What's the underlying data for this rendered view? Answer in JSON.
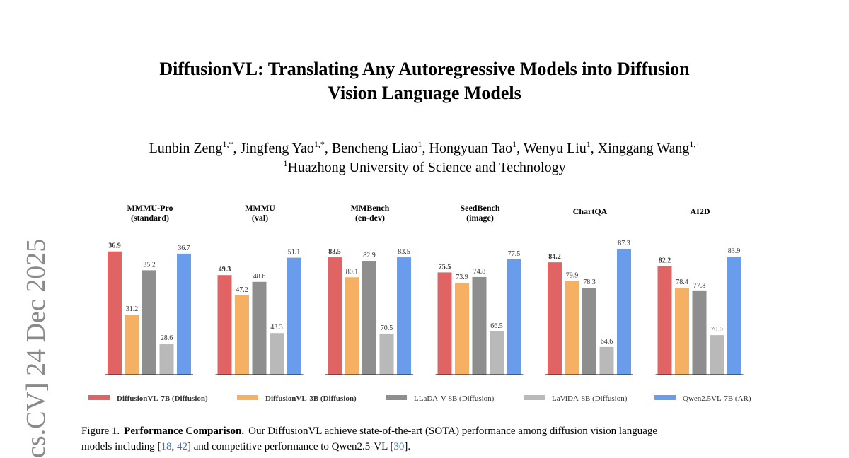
{
  "sidebar": "cs.CV]  24 Dec 2025",
  "title": [
    "DiffusionVL: Translating Any Autoregressive Models into Diffusion",
    "Vision Language Models"
  ],
  "authors": [
    {
      "name": "Lunbin Zeng",
      "sup": "1,*"
    },
    {
      "name": ", Jingfeng Yao",
      "sup": "1,*"
    },
    {
      "name": ", Bencheng Liao",
      "sup": "1"
    },
    {
      "name": ", Hongyuan Tao",
      "sup": "1"
    },
    {
      "name": ", Wenyu Liu",
      "sup": "1"
    },
    {
      "name": ", Xinggang Wang",
      "sup": "1,†"
    }
  ],
  "affiliation": {
    "sup": "1",
    "name": "Huazhong University of Science and Technology"
  },
  "legend": [
    {
      "name": "DiffusionVL-7B (Diffusion)",
      "color": "#e06464"
    },
    {
      "name": "DiffusionVL-3B (Diffusion)",
      "color": "#f5b064"
    },
    {
      "name": "LLaDA-V-8B (Diffusion)",
      "color": "#8e8e8e"
    },
    {
      "name": "LaViDA-8B (Diffusion)",
      "color": "#b9b9b9"
    },
    {
      "name": "Qwen2.5VL-7B (AR)",
      "color": "#6a9cec"
    }
  ],
  "chart_data": [
    {
      "type": "bar",
      "title": [
        "MMMU-Pro",
        "(standard)"
      ],
      "values": [
        36.9,
        31.2,
        35.2,
        28.6,
        36.7
      ],
      "ylim": [
        25.8,
        37.9
      ]
    },
    {
      "type": "bar",
      "title": [
        "MMMU",
        "(val)"
      ],
      "values": [
        49.3,
        47.2,
        48.6,
        43.3,
        51.1
      ],
      "ylim": [
        39.0,
        52.9
      ]
    },
    {
      "type": "bar",
      "title": [
        "MMBench",
        "(en-dev)"
      ],
      "values": [
        83.5,
        80.1,
        82.9,
        70.5,
        83.5
      ],
      "ylim": [
        63.5,
        86.4
      ]
    },
    {
      "type": "bar",
      "title": [
        "SeedBench",
        "(image)"
      ],
      "values": [
        75.5,
        73.9,
        74.8,
        66.5,
        77.5
      ],
      "ylim": [
        59.9,
        80.4
      ]
    },
    {
      "type": "bar",
      "title": [
        "ChartQA"
      ],
      "values": [
        84.2,
        79.9,
        78.3,
        64.6,
        87.3
      ],
      "ylim": [
        58.2,
        89.3
      ]
    },
    {
      "type": "bar",
      "title": [
        "AI2D"
      ],
      "values": [
        82.2,
        78.4,
        77.8,
        70.0,
        83.9
      ],
      "value_labels": [
        "82.2",
        "78.4",
        "77.8",
        "70.0",
        "83.9"
      ],
      "ylim": [
        63.0,
        86.8
      ]
    }
  ],
  "caption": {
    "label": "Figure 1.",
    "heading": "Performance Comparison.",
    "lines": [
      [
        {
          "text": "Our DiffusionVL achieve state-of-the-art (SOTA) performance among diffusion vision language"
        }
      ],
      [
        {
          "text": "models including ["
        },
        {
          "cite": "18"
        },
        {
          "text": ", "
        },
        {
          "cite": "42"
        },
        {
          "text": "] and competitive performance to Qwen2.5-VL ["
        },
        {
          "cite": "30"
        },
        {
          "text": "]."
        }
      ]
    ]
  }
}
